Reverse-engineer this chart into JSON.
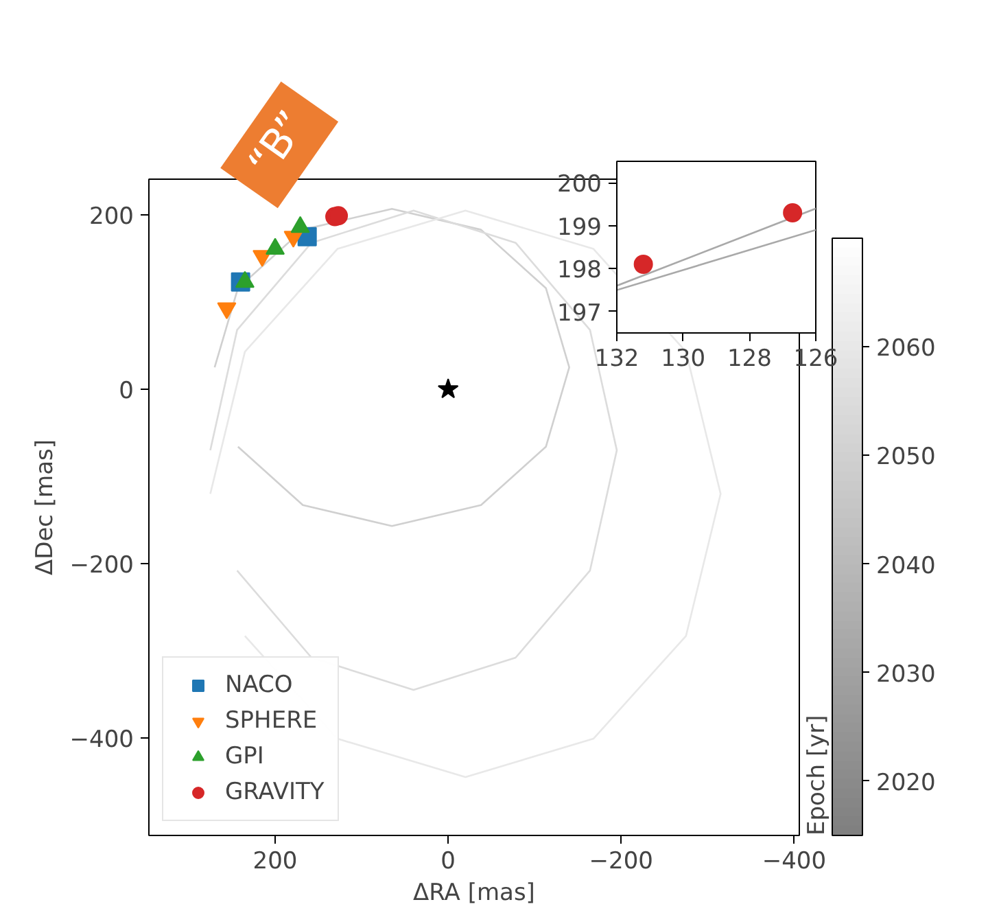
{
  "chart_data": [
    {
      "type": "scatter",
      "xlabel": "ΔRA [mas]",
      "ylabel": "ΔDec [mas]",
      "clabel": "Epoch [yr]",
      "clim": [
        2015,
        2070
      ],
      "cticks": [
        2020,
        2030,
        2040,
        2050,
        2060
      ],
      "xlim": [
        346,
        -406
      ],
      "ylim": [
        -512,
        241
      ],
      "xticks": [
        200,
        0,
        -200,
        -400
      ],
      "yticks": [
        -400,
        -200,
        0,
        200
      ],
      "grid": false,
      "legend": "bottom left",
      "annotations": [
        "“B”"
      ],
      "series": [
        {
          "type": "line",
          "color": "#d0d0d0",
          "x": [
            270,
            243,
            168,
            65,
            -38,
            -113,
            -140,
            -113,
            -38,
            65,
            168,
            243
          ],
          "values": [
            25,
            116,
            183,
            207,
            183,
            116,
            25,
            -66,
            -133,
            -157,
            -133,
            -66
          ]
        },
        {
          "type": "line",
          "color": "#dcdcdc",
          "x": [
            275,
            244,
            158,
            40,
            -78,
            -164,
            -195,
            -164,
            -78,
            40,
            158,
            244
          ],
          "values": [
            -70,
            68,
            168,
            205,
            168,
            68,
            -70,
            -208,
            -308,
            -345,
            -308,
            -208
          ]
        },
        {
          "type": "line",
          "color": "#e8e8e8",
          "x": [
            275,
            235,
            128,
            -20,
            -168,
            -275,
            -315,
            -275,
            -168,
            -20,
            128,
            235
          ],
          "values": [
            -120,
            43,
            161,
            205,
            161,
            43,
            -120,
            -283,
            -401,
            -445,
            -401,
            -283
          ]
        },
        {
          "name": "NACO",
          "marker": "square",
          "color": "#1f77b4",
          "x": [
            240,
            163
          ],
          "values": [
            123,
            175
          ]
        },
        {
          "name": "SPHERE",
          "marker": "triangle_down",
          "color": "#ff7f0e",
          "x": [
            256,
            215,
            179
          ],
          "values": [
            93,
            153,
            175
          ]
        },
        {
          "name": "GPI",
          "marker": "triangle",
          "color": "#2ca02c",
          "x": [
            235,
            200,
            171
          ],
          "values": [
            123,
            161,
            186
          ]
        },
        {
          "name": "GRAVITY",
          "marker": "circle",
          "color": "#d62728",
          "x": [
            131,
            127
          ],
          "values": [
            198,
            199
          ]
        },
        {
          "marker": "star",
          "color": "#000000",
          "x": [
            0
          ],
          "values": [
            0
          ]
        }
      ]
    },
    {
      "type": "scatter",
      "xlim": [
        132,
        126
      ],
      "ylim": [
        196.5,
        200.5
      ],
      "xticks": [
        132,
        130,
        128,
        126
      ],
      "yticks": [
        197,
        198,
        199,
        200
      ],
      "grid": false,
      "series": [
        {
          "type": "line",
          "color": "#a9a9a9",
          "x": [
            132,
            126
          ],
          "values": [
            197.6,
            199.4
          ]
        },
        {
          "type": "line",
          "color": "#a9a9a9",
          "x": [
            132,
            126
          ],
          "values": [
            197.5,
            198.9
          ]
        },
        {
          "marker": "circle",
          "color": "#d62728",
          "x": [
            131.2,
            126.7
          ],
          "values": [
            198.1,
            199.3
          ]
        }
      ]
    }
  ]
}
